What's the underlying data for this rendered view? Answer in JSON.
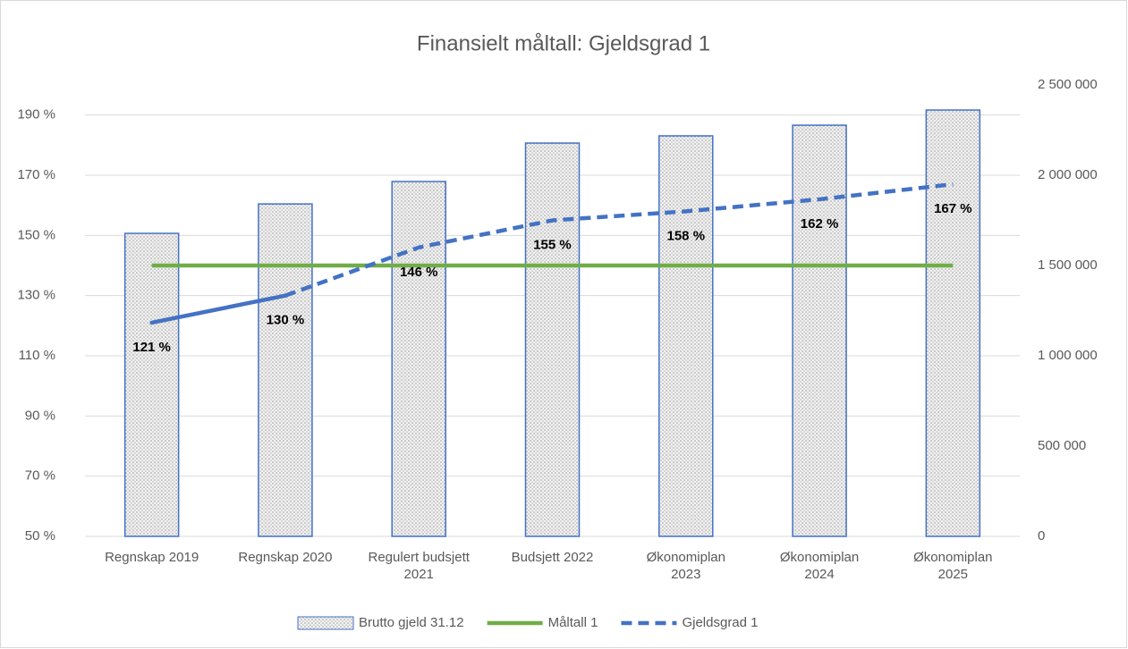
{
  "chart_data": {
    "type": "bar_line_combo",
    "title": "Finansielt måltall: Gjeldsgrad 1",
    "categories": [
      "Regnskap 2019",
      "Regnskap 2020",
      "Regulert budsjett 2021",
      "Budsjett 2022",
      "Økonomiplan 2023",
      "Økonomiplan 2024",
      "Økonomiplan 2025"
    ],
    "ylim": [
      50,
      200
    ],
    "yticks": [
      {
        "value": 50,
        "label": "50 %"
      },
      {
        "value": 70,
        "label": "70 %"
      },
      {
        "value": 90,
        "label": "90 %"
      },
      {
        "value": 110,
        "label": "110 %"
      },
      {
        "value": 130,
        "label": "130 %"
      },
      {
        "value": 150,
        "label": "150 %"
      },
      {
        "value": 170,
        "label": "170 %"
      },
      {
        "value": 190,
        "label": "190 %"
      }
    ],
    "y2lim": [
      0,
      2500000
    ],
    "y2ticks": [
      0,
      {
        "value": 500000,
        "label": "500 000"
      },
      {
        "value": 1000000,
        "label": "1 000 000"
      },
      {
        "value": 1500000,
        "label": "1 500 000"
      },
      {
        "value": 2000000,
        "label": "2 000 000"
      },
      {
        "value": 2500000,
        "label": "2 500 000"
      }
    ],
    "grid": true,
    "legend": "bottom",
    "series": [
      {
        "name": "Brutto gjeld 31.12",
        "type": "bar",
        "axis": "y2",
        "color": "#4472c4",
        "values": [
          1678000,
          1841000,
          1965000,
          2178000,
          2218000,
          2277000,
          2361000
        ]
      },
      {
        "name": "Måltall 1",
        "type": "line",
        "color": "#70ad47",
        "values": [
          140,
          140,
          140,
          140,
          140,
          140,
          140
        ]
      },
      {
        "name": "Gjeldsgrad 1",
        "type": "line",
        "color": "#4472c4",
        "dashed": true,
        "solid_until": 1,
        "values": [
          121,
          130,
          146,
          155,
          158,
          162,
          167
        ],
        "value_labels": [
          "121 %",
          "130 %",
          "146 %",
          "155 %",
          "158 %",
          "162 %",
          "167 %"
        ]
      }
    ]
  }
}
